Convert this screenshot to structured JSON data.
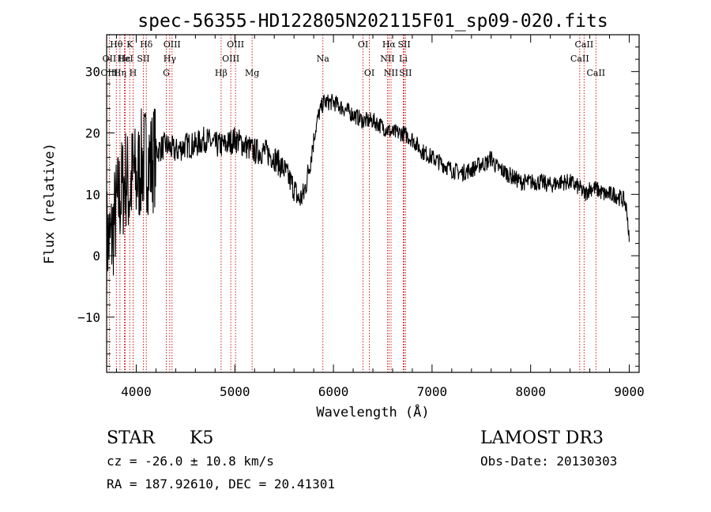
{
  "chart_data": {
    "type": "line",
    "title": "spec-56355-HD122805N202115F01_sp09-020.fits",
    "xlabel": "Wavelength (Å)",
    "ylabel": "Flux (relative)",
    "xlim": [
      3700,
      9100
    ],
    "ylim": [
      -19,
      36
    ],
    "x_ticks": [
      4000,
      5000,
      6000,
      7000,
      8000,
      9000
    ],
    "y_ticks": [
      -10,
      0,
      10,
      20,
      30
    ],
    "grid": false,
    "series": [
      {
        "name": "spectrum",
        "x": [
          3700,
          3740,
          3780,
          3820,
          3860,
          3900,
          3930,
          3970,
          4000,
          4050,
          4100,
          4150,
          4200,
          4300,
          4400,
          4500,
          4600,
          4700,
          4800,
          4900,
          5000,
          5100,
          5200,
          5300,
          5400,
          5500,
          5600,
          5650,
          5700,
          5750,
          5800,
          5850,
          5900,
          5950,
          6000,
          6100,
          6200,
          6300,
          6400,
          6500,
          6600,
          6700,
          6800,
          6900,
          7000,
          7100,
          7200,
          7300,
          7400,
          7500,
          7550,
          7600,
          7650,
          7700,
          7800,
          7900,
          8000,
          8100,
          8200,
          8300,
          8400,
          8500,
          8550,
          8600,
          8650,
          8700,
          8750,
          8800,
          8850,
          8900,
          8950,
          8980,
          9000
        ],
        "y": [
          3,
          2,
          6,
          9,
          11,
          13,
          10,
          14,
          12,
          15,
          16,
          15,
          17,
          18,
          17,
          18,
          18,
          19,
          18,
          18,
          19,
          18,
          17,
          17,
          16,
          14,
          11,
          9,
          10,
          14,
          19,
          23,
          25,
          25,
          25,
          24,
          23,
          22,
          22,
          21,
          20,
          20,
          19,
          17,
          16,
          15,
          14,
          13.5,
          14,
          15,
          15,
          16,
          14.5,
          14,
          13,
          12,
          12,
          12,
          11.5,
          12,
          12,
          11,
          10,
          11,
          11,
          10.5,
          10,
          10,
          10,
          9.5,
          9,
          7,
          2
        ]
      }
    ],
    "line_labels": [
      {
        "label": "Hθ",
        "wavelength": 3798,
        "row": 1
      },
      {
        "label": "OII",
        "wavelength": 3727,
        "row": 2
      },
      {
        "label": "OIII",
        "wavelength": 3727,
        "row": 3
      },
      {
        "label": "K",
        "wavelength": 3934,
        "row": 1
      },
      {
        "label": "Hε",
        "wavelength": 3880,
        "row": 2
      },
      {
        "label": "Hη",
        "wavelength": 3835,
        "row": 3
      },
      {
        "label": "Hδ",
        "wavelength": 4102,
        "row": 1
      },
      {
        "label": "HeI",
        "wavelength": 3889,
        "row": 2
      },
      {
        "label": "SII",
        "wavelength": 4072,
        "row": 2
      },
      {
        "label": "H",
        "wavelength": 3968,
        "row": 3
      },
      {
        "label": "OIII",
        "wavelength": 4363,
        "row": 1
      },
      {
        "label": "Hγ",
        "wavelength": 4340,
        "row": 2
      },
      {
        "label": "G",
        "wavelength": 4305,
        "row": 3
      },
      {
        "label": "Hβ",
        "wavelength": 4861,
        "row": 3
      },
      {
        "label": "OIII",
        "wavelength": 5007,
        "row": 1
      },
      {
        "label": "OIII",
        "wavelength": 4959,
        "row": 2
      },
      {
        "label": "Mg",
        "wavelength": 5175,
        "row": 3
      },
      {
        "label": "Na",
        "wavelength": 5893,
        "row": 2
      },
      {
        "label": "OI",
        "wavelength": 6300,
        "row": 1
      },
      {
        "label": "OI",
        "wavelength": 6364,
        "row": 3
      },
      {
        "label": "Hα",
        "wavelength": 6563,
        "row": 1
      },
      {
        "label": "SII",
        "wavelength": 6717,
        "row": 1
      },
      {
        "label": "NII",
        "wavelength": 6548,
        "row": 2
      },
      {
        "label": "Li",
        "wavelength": 6708,
        "row": 2
      },
      {
        "label": "NII",
        "wavelength": 6584,
        "row": 3
      },
      {
        "label": "SII",
        "wavelength": 6731,
        "row": 3
      },
      {
        "label": "CaII",
        "wavelength": 8542,
        "row": 1
      },
      {
        "label": "CaII",
        "wavelength": 8498,
        "row": 2
      },
      {
        "label": "CaII",
        "wavelength": 8662,
        "row": 3
      }
    ]
  },
  "info": {
    "class_label": "STAR",
    "subclass": "K5",
    "survey": "LAMOST DR3",
    "cz": "cz = -26.0 ± 10.8 km/s",
    "obs_date": "Obs-Date: 20130303",
    "radec": "RA = 187.92610, DEC =  20.41301"
  },
  "colors": {
    "axis": "#000000",
    "spectrum": "#000000",
    "line_marker": "#cc0000"
  }
}
